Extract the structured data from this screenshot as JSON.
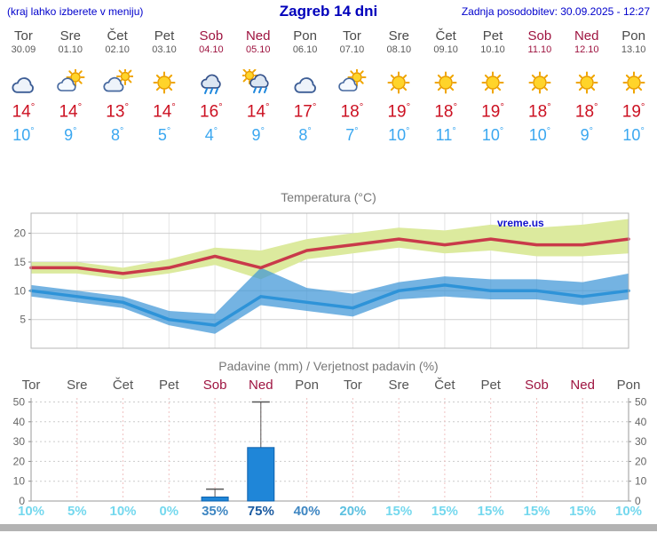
{
  "header": {
    "left_note": "(kraj lahko izberete v meniju)",
    "title": "Zagreb 14 dni",
    "updated": "Zadnja posodobitev: 30.09.2025 - 12:27"
  },
  "days": [
    {
      "name": "Tor",
      "date": "30.09",
      "icon": "cloudy",
      "tmax": "14",
      "tmin": "10",
      "weekend": false
    },
    {
      "name": "Sre",
      "date": "01.10",
      "icon": "partly-cloudy",
      "tmax": "14",
      "tmin": "9",
      "weekend": false
    },
    {
      "name": "Čet",
      "date": "02.10",
      "icon": "mostly-cloudy",
      "tmax": "13",
      "tmin": "8",
      "weekend": false
    },
    {
      "name": "Pet",
      "date": "03.10",
      "icon": "sunny",
      "tmax": "14",
      "tmin": "5",
      "weekend": false
    },
    {
      "name": "Sob",
      "date": "04.10",
      "icon": "rain",
      "tmax": "16",
      "tmin": "4",
      "weekend": true
    },
    {
      "name": "Ned",
      "date": "05.10",
      "icon": "rain-showers-sun",
      "tmax": "14",
      "tmin": "9",
      "weekend": true
    },
    {
      "name": "Pon",
      "date": "06.10",
      "icon": "cloudy",
      "tmax": "17",
      "tmin": "8",
      "weekend": false
    },
    {
      "name": "Tor",
      "date": "07.10",
      "icon": "partly-cloudy",
      "tmax": "18",
      "tmin": "7",
      "weekend": false
    },
    {
      "name": "Sre",
      "date": "08.10",
      "icon": "sunny",
      "tmax": "19",
      "tmin": "10",
      "weekend": false
    },
    {
      "name": "Čet",
      "date": "09.10",
      "icon": "sunny",
      "tmax": "18",
      "tmin": "11",
      "weekend": false
    },
    {
      "name": "Pet",
      "date": "10.10",
      "icon": "sunny",
      "tmax": "19",
      "tmin": "10",
      "weekend": false
    },
    {
      "name": "Sob",
      "date": "11.10",
      "icon": "sunny",
      "tmax": "18",
      "tmin": "10",
      "weekend": true
    },
    {
      "name": "Ned",
      "date": "12.10",
      "icon": "sunny",
      "tmax": "18",
      "tmin": "9",
      "weekend": true
    },
    {
      "name": "Pon",
      "date": "13.10",
      "icon": "sunny",
      "tmax": "19",
      "tmin": "10",
      "weekend": false
    }
  ],
  "chart_data": [
    {
      "type": "line",
      "title": "Temperatura (°C)",
      "watermark": "vreme.us",
      "x_labels": [
        "Tor 30.09",
        "Sre 01.10",
        "Čet 02.10",
        "Pet 03.10",
        "Sob 04.10",
        "Ned 05.10",
        "Pon 06.10",
        "Tor 07.10",
        "Sre 08.10",
        "Čet 09.10",
        "Pet 10.10",
        "Sob 11.10",
        "Ned 12.10",
        "Pon 13.10"
      ],
      "ylim": [
        0,
        23.5
      ],
      "yticks": [
        5,
        10,
        15,
        20
      ],
      "grid": true,
      "legend": "none",
      "series": [
        {
          "name": "temp-max",
          "color": "#c93a4a",
          "values": [
            14,
            14,
            13,
            14,
            16,
            14,
            17,
            18,
            19,
            18,
            19,
            18,
            18,
            19
          ]
        },
        {
          "name": "temp-min",
          "color": "#2e93d8",
          "values": [
            10,
            9,
            8,
            5,
            4,
            9,
            8,
            7,
            10,
            11,
            10,
            10,
            9,
            10
          ]
        },
        {
          "name": "temp-max-range-upper",
          "values": [
            15,
            15,
            14,
            15.5,
            17.5,
            17,
            19,
            20,
            21,
            20.5,
            21.5,
            21,
            21.5,
            22.5
          ]
        },
        {
          "name": "temp-max-range-lower",
          "values": [
            13,
            13,
            12,
            13,
            14.5,
            12,
            15.5,
            16.5,
            17.5,
            16.5,
            17,
            16,
            16,
            16.5
          ]
        },
        {
          "name": "temp-min-range-upper",
          "values": [
            11,
            10,
            9,
            6.5,
            6,
            14,
            10.5,
            9.5,
            11.5,
            12.5,
            12,
            12,
            11.5,
            13
          ]
        },
        {
          "name": "temp-min-range-lower",
          "values": [
            9,
            8,
            7,
            4,
            2.5,
            7.5,
            6.5,
            5.5,
            8.5,
            9,
            8.5,
            8.5,
            7.5,
            8.5
          ]
        }
      ],
      "band_colors": {
        "max_range": "#dcea9e",
        "min_range": "rgba(62,150,215,0.72)"
      }
    },
    {
      "type": "bar",
      "title": "Padavine (mm) / Verjetnost padavin (%)",
      "categories": [
        "Tor",
        "Sre",
        "Čet",
        "Pet",
        "Sob",
        "Ned",
        "Pon",
        "Tor",
        "Sre",
        "Čet",
        "Pet",
        "Sob",
        "Ned",
        "Pon"
      ],
      "weekend": [
        false,
        false,
        false,
        false,
        true,
        true,
        false,
        false,
        false,
        false,
        false,
        true,
        true,
        false
      ],
      "values": [
        0,
        0,
        0,
        0,
        2,
        27,
        0,
        0,
        0,
        0,
        0,
        0,
        0,
        0
      ],
      "whisker_max": [
        0,
        0,
        0,
        0,
        6,
        50,
        0,
        0,
        0,
        0,
        0,
        0,
        0,
        0
      ],
      "probabilities": [
        "10%",
        "5%",
        "10%",
        "0%",
        "35%",
        "75%",
        "40%",
        "20%",
        "15%",
        "15%",
        "15%",
        "15%",
        "15%",
        "10%"
      ],
      "ylim": [
        0,
        52
      ],
      "yticks": [
        0,
        10,
        20,
        30,
        40,
        50
      ],
      "bar_color": "#1f86d8",
      "bar_border": "#0e62ae"
    }
  ]
}
